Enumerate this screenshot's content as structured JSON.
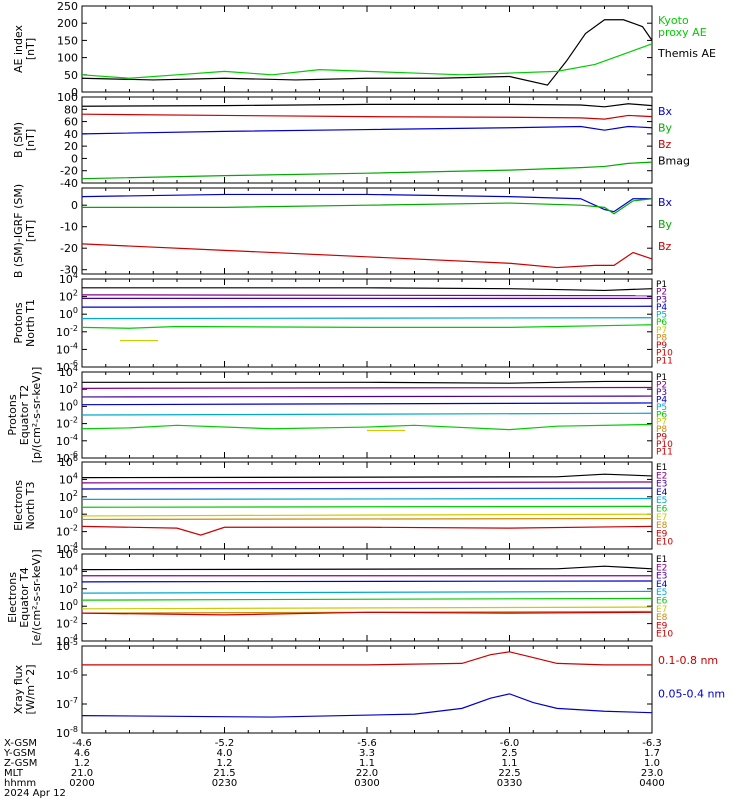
{
  "chart_data": {
    "type": "line",
    "time_axis": {
      "x_range": [
        "02:00",
        "04:00"
      ],
      "ephemeris_rows": [
        {
          "label": "X-GSM",
          "values": [
            "-4.6",
            "-5.2",
            "-5.6",
            "-6.0",
            "-6.3"
          ]
        },
        {
          "label": "Y-GSM",
          "values": [
            "4.6",
            "4.0",
            "3.3",
            "2.5",
            "1.7"
          ]
        },
        {
          "label": "Z-GSM",
          "values": [
            "1.2",
            "1.2",
            "1.1",
            "1.1",
            "1.0"
          ]
        },
        {
          "label": "MLT",
          "values": [
            "21.0",
            "21.5",
            "22.0",
            "22.5",
            "23.0"
          ]
        },
        {
          "label": "hhmm",
          "values": [
            "0200",
            "0230",
            "0300",
            "0330",
            "0400"
          ]
        }
      ],
      "date_label": "2024 Apr 12"
    },
    "panels": [
      {
        "id": "ae",
        "ylabel": "AE index\n[nT]",
        "scale": "linear",
        "ylim": [
          0,
          250
        ],
        "ticks": [
          "0",
          "50",
          "100",
          "150",
          "200",
          "250"
        ],
        "legend": [
          {
            "text": "Kyoto\nproxy AE",
            "color": "#00cc00"
          },
          {
            "text": "Themis AE",
            "color": "#000000"
          }
        ],
        "series": [
          {
            "color": "#000000",
            "x": [
              0,
              15,
              30,
              45,
              60,
              75,
              90,
              98,
              102,
              106,
              110,
              114,
              118,
              120
            ],
            "y": [
              40,
              35,
              40,
              35,
              40,
              40,
              45,
              20,
              90,
              170,
              210,
              210,
              190,
              150
            ]
          },
          {
            "color": "#00cc00",
            "x": [
              0,
              10,
              20,
              30,
              40,
              50,
              60,
              70,
              80,
              90,
              100,
              108,
              114,
              120
            ],
            "y": [
              50,
              40,
              50,
              60,
              50,
              65,
              60,
              55,
              50,
              55,
              60,
              80,
              110,
              140
            ]
          }
        ]
      },
      {
        "id": "b_sm",
        "ylabel": "B (SM)\n[nT]",
        "scale": "linear",
        "ylim": [
          -40,
          100
        ],
        "ticks": [
          "-40",
          "-20",
          "0",
          "20",
          "40",
          "60",
          "80",
          "100"
        ],
        "legend": [
          {
            "text": "Bx",
            "color": "#0000cc"
          },
          {
            "text": "By",
            "color": "#00aa00"
          },
          {
            "text": "Bz",
            "color": "#cc0000"
          },
          {
            "text": "Bmag",
            "color": "#000000"
          }
        ],
        "series": [
          {
            "color": "#000000",
            "x": [
              0,
              30,
              60,
              90,
              105,
              110,
              115,
              120
            ],
            "y": [
              85,
              86,
              88,
              88,
              87,
              84,
              89,
              86
            ]
          },
          {
            "color": "#cc0000",
            "x": [
              0,
              30,
              60,
              90,
              105,
              110,
              115,
              120
            ],
            "y": [
              72,
              70,
              68,
              67,
              66,
              64,
              70,
              68
            ]
          },
          {
            "color": "#0000cc",
            "x": [
              0,
              30,
              60,
              90,
              105,
              110,
              115,
              120
            ],
            "y": [
              40,
              44,
              47,
              50,
              52,
              46,
              52,
              50
            ]
          },
          {
            "color": "#00aa00",
            "x": [
              0,
              30,
              60,
              90,
              105,
              110,
              115,
              120
            ],
            "y": [
              -33,
              -28,
              -24,
              -19,
              -15,
              -13,
              -8,
              -6
            ]
          }
        ]
      },
      {
        "id": "b_igrf",
        "ylabel": "B (SM)-IGRF (SM)\n[nT]",
        "scale": "linear",
        "ylim": [
          -32,
          8
        ],
        "ticks": [
          "-30",
          "-20",
          "-10",
          "0"
        ],
        "legend": [
          {
            "text": "Bx",
            "color": "#0000cc"
          },
          {
            "text": "By",
            "color": "#00aa00"
          },
          {
            "text": "Bz",
            "color": "#cc0000"
          }
        ],
        "series": [
          {
            "color": "#0000cc",
            "x": [
              0,
              30,
              60,
              90,
              105,
              110,
              112,
              116,
              120
            ],
            "y": [
              4,
              5,
              5,
              4,
              3,
              -2,
              -3,
              3,
              3
            ]
          },
          {
            "color": "#00aa00",
            "x": [
              0,
              30,
              60,
              90,
              105,
              110,
              112,
              116,
              120
            ],
            "y": [
              -1,
              -1,
              0,
              1,
              0,
              -1,
              -4,
              2,
              3
            ]
          },
          {
            "color": "#cc0000",
            "x": [
              0,
              30,
              60,
              90,
              100,
              108,
              112,
              116,
              120
            ],
            "y": [
              -18,
              -21,
              -24,
              -27,
              -29,
              -28,
              -28,
              -22,
              -25
            ]
          }
        ]
      },
      {
        "id": "p_t1",
        "ylabel": "Protons\nNorth T1",
        "scale": "log",
        "ylim": [
          -6,
          4
        ],
        "ticks": [
          "10^-6",
          "10^-4",
          "10^-2",
          "10^0",
          "10^2",
          "10^4"
        ],
        "legend_vertical": [
          "P1",
          "P2",
          "P3",
          "P4",
          "P5",
          "P6",
          "P7",
          "P8",
          "P9",
          "P10",
          "P11"
        ],
        "series": [
          {
            "color": "#000000",
            "x": [
              0,
              60,
              90,
              110,
              120
            ],
            "y": [
              3.0,
              3.0,
              2.9,
              2.7,
              2.9
            ]
          },
          {
            "color": "#880088",
            "x": [
              0,
              120
            ],
            "y": [
              2.2,
              2.1
            ]
          },
          {
            "color": "#440099",
            "x": [
              0,
              120
            ],
            "y": [
              1.8,
              1.8
            ]
          },
          {
            "color": "#0000cc",
            "x": [
              0,
              120
            ],
            "y": [
              0.8,
              0.9
            ]
          },
          {
            "color": "#00aacc",
            "x": [
              0,
              120
            ],
            "y": [
              -0.5,
              -0.4
            ]
          },
          {
            "color": "#00cc00",
            "x": [
              0,
              10,
              20,
              60,
              90,
              120
            ],
            "y": [
              -1.5,
              -1.6,
              -1.4,
              -1.5,
              -1.5,
              -1.2
            ]
          },
          {
            "color": "#cccc00",
            "x": [
              8,
              16
            ],
            "y": [
              -3.0,
              -3.0
            ]
          }
        ]
      },
      {
        "id": "p_t2",
        "ylabel": "Protons\nEquator T2\n[p/(cm²-s-sr-keV)]",
        "scale": "log",
        "ylim": [
          -6,
          4
        ],
        "ticks": [
          "10^-6",
          "10^-4",
          "10^-2",
          "10^0",
          "10^2",
          "10^4"
        ],
        "legend_vertical": [
          "P1",
          "P2",
          "P3",
          "P4",
          "P5",
          "P6",
          "P7",
          "P8",
          "P9",
          "P10",
          "P11"
        ],
        "series": [
          {
            "color": "#000000",
            "x": [
              0,
              60,
              90,
              110,
              120
            ],
            "y": [
              2.8,
              2.8,
              2.7,
              2.9,
              2.9
            ]
          },
          {
            "color": "#880088",
            "x": [
              0,
              120
            ],
            "y": [
              2.1,
              2.2
            ]
          },
          {
            "color": "#440099",
            "x": [
              0,
              120
            ],
            "y": [
              1.1,
              1.2
            ]
          },
          {
            "color": "#0000cc",
            "x": [
              0,
              120
            ],
            "y": [
              0.2,
              0.4
            ]
          },
          {
            "color": "#00aacc",
            "x": [
              0,
              120
            ],
            "y": [
              -1.0,
              -0.8
            ]
          },
          {
            "color": "#00cc00",
            "x": [
              0,
              10,
              20,
              40,
              60,
              70,
              90,
              100,
              120
            ],
            "y": [
              -2.6,
              -2.5,
              -2.2,
              -2.6,
              -2.4,
              -2.2,
              -2.7,
              -2.3,
              -2.1
            ]
          },
          {
            "color": "#cccc00",
            "x": [
              60,
              68
            ],
            "y": [
              -2.8,
              -2.8
            ]
          }
        ]
      },
      {
        "id": "e_t3",
        "ylabel": "Electrons\nNorth T3",
        "scale": "log",
        "ylim": [
          -4,
          6
        ],
        "ticks": [
          "10^-4",
          "10^-2",
          "10^0",
          "10^2",
          "10^4",
          "10^6"
        ],
        "legend_vertical": [
          "E1",
          "E2",
          "E3",
          "E4",
          "E5",
          "E6",
          "E7",
          "E8",
          "E9",
          "E10"
        ],
        "series": [
          {
            "color": "#000000",
            "x": [
              0,
              100,
              110,
              120
            ],
            "y": [
              4.2,
              4.3,
              4.6,
              4.4
            ]
          },
          {
            "color": "#880088",
            "x": [
              0,
              120
            ],
            "y": [
              3.6,
              3.7
            ]
          },
          {
            "color": "#0000cc",
            "x": [
              0,
              120
            ],
            "y": [
              2.9,
              3.0
            ]
          },
          {
            "color": "#00aacc",
            "x": [
              0,
              120
            ],
            "y": [
              1.7,
              1.8
            ]
          },
          {
            "color": "#00cc00",
            "x": [
              0,
              120
            ],
            "y": [
              0.8,
              0.9
            ]
          },
          {
            "color": "#cccc00",
            "x": [
              0,
              120
            ],
            "y": [
              -0.2,
              0
            ]
          },
          {
            "color": "#cc8800",
            "x": [
              0,
              120
            ],
            "y": [
              -0.6,
              -0.5
            ]
          },
          {
            "color": "#cc0000",
            "x": [
              0,
              20,
              25,
              30,
              60,
              90,
              120
            ],
            "y": [
              -1.4,
              -1.6,
              -2.4,
              -1.5,
              -1.5,
              -1.6,
              -1.4
            ]
          }
        ]
      },
      {
        "id": "e_t4",
        "ylabel": "Electrons\nEquator T4\n[e/(cm²-s-sr-keV)]",
        "scale": "log",
        "ylim": [
          -4,
          6
        ],
        "ticks": [
          "10^-4",
          "10^-2",
          "10^0",
          "10^2",
          "10^4",
          "10^6"
        ],
        "legend_vertical": [
          "E1",
          "E2",
          "E3",
          "E4",
          "E5",
          "E6",
          "E7",
          "E8",
          "E9",
          "E10"
        ],
        "series": [
          {
            "color": "#000000",
            "x": [
              0,
              100,
              110,
              120
            ],
            "y": [
              4.2,
              4.3,
              4.6,
              4.3
            ]
          },
          {
            "color": "#880088",
            "x": [
              0,
              120
            ],
            "y": [
              3.5,
              3.5
            ]
          },
          {
            "color": "#0000cc",
            "x": [
              0,
              120
            ],
            "y": [
              2.8,
              2.9
            ]
          },
          {
            "color": "#00aacc",
            "x": [
              0,
              120
            ],
            "y": [
              1.5,
              1.7
            ]
          },
          {
            "color": "#00cc00",
            "x": [
              0,
              120
            ],
            "y": [
              0.7,
              0.9
            ]
          },
          {
            "color": "#cccc00",
            "x": [
              0,
              120
            ],
            "y": [
              -0.3,
              -0.1
            ]
          },
          {
            "color": "#cc8800",
            "x": [
              0,
              120
            ],
            "y": [
              -0.8,
              -0.6
            ]
          },
          {
            "color": "#cc0000",
            "x": [
              0,
              30,
              60,
              90,
              120
            ],
            "y": [
              -0.8,
              -1.0,
              -0.7,
              -0.8,
              -0.7
            ]
          }
        ]
      },
      {
        "id": "xray",
        "ylabel": "Xray flux\n[W/m^2]",
        "scale": "log",
        "ylim": [
          -8,
          -5
        ],
        "ticks": [
          "10^-8",
          "10^-7",
          "10^-6",
          "10^-5"
        ],
        "legend": [
          {
            "text": "0.1-0.8 nm",
            "color": "#cc0000"
          },
          {
            "text": "0.05-0.4 nm",
            "color": "#0000cc"
          }
        ],
        "series": [
          {
            "color": "#cc0000",
            "x": [
              0,
              60,
              80,
              86,
              90,
              95,
              100,
              110,
              120
            ],
            "y": [
              -5.65,
              -5.65,
              -5.6,
              -5.3,
              -5.2,
              -5.4,
              -5.6,
              -5.65,
              -5.65
            ]
          },
          {
            "color": "#0000cc",
            "x": [
              0,
              40,
              70,
              80,
              86,
              90,
              95,
              100,
              110,
              120
            ],
            "y": [
              -7.4,
              -7.45,
              -7.35,
              -7.15,
              -6.8,
              -6.65,
              -6.95,
              -7.15,
              -7.25,
              -7.3
            ]
          }
        ]
      }
    ]
  }
}
